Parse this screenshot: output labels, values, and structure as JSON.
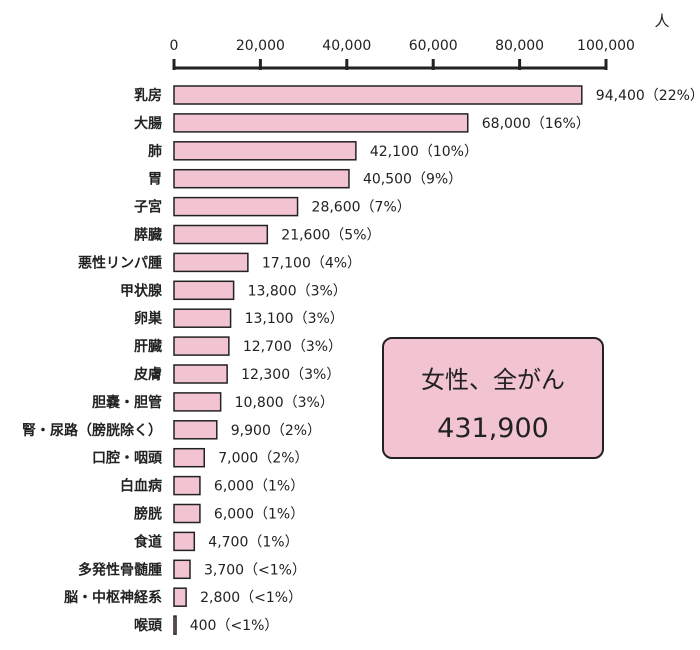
{
  "chart_data": {
    "type": "bar",
    "orientation": "horizontal",
    "unit_label": "人",
    "xlim": [
      0,
      100000
    ],
    "x_ticks": [
      "0",
      "20,000",
      "40,000",
      "60,000",
      "80,000",
      "100,000"
    ],
    "categories": [
      "乳房",
      "大腸",
      "肺",
      "胃",
      "子宮",
      "膵臓",
      "悪性リンパ腫",
      "甲状腺",
      "卵巣",
      "肝臓",
      "皮膚",
      "胆嚢・胆管",
      "腎・尿路（膀胱除く）",
      "口腔・咽頭",
      "白血病",
      "膀胱",
      "食道",
      "多発性骨髄腫",
      "脳・中枢神経系",
      "喉頭"
    ],
    "values": [
      94400,
      68000,
      42100,
      40500,
      28600,
      21600,
      17100,
      13800,
      13100,
      12700,
      12300,
      10800,
      9900,
      7000,
      6000,
      6000,
      4700,
      3700,
      2800,
      400
    ],
    "value_labels": [
      "94,400（22%）",
      "68,000（16%）",
      "42,100（10%）",
      "40,500（9%）",
      "28,600（7%）",
      "21,600（5%）",
      "17,100（4%）",
      "13,800（3%）",
      "13,100（3%）",
      "12,700（3%）",
      "12,300（3%）",
      "10,800（3%）",
      "9,900（2%）",
      "7,000（2%）",
      "6,000（1%）",
      "6,000（1%）",
      "4,700（1%）",
      "3,700（<1%）",
      "2,800（<1%）",
      "400（<1%）"
    ],
    "colors": {
      "bar_fill": "#f2c4d2",
      "bar_stroke": "#222222"
    },
    "grid": false,
    "legend": "none"
  },
  "total_box": {
    "title": "女性、全がん",
    "value": "431,900"
  }
}
